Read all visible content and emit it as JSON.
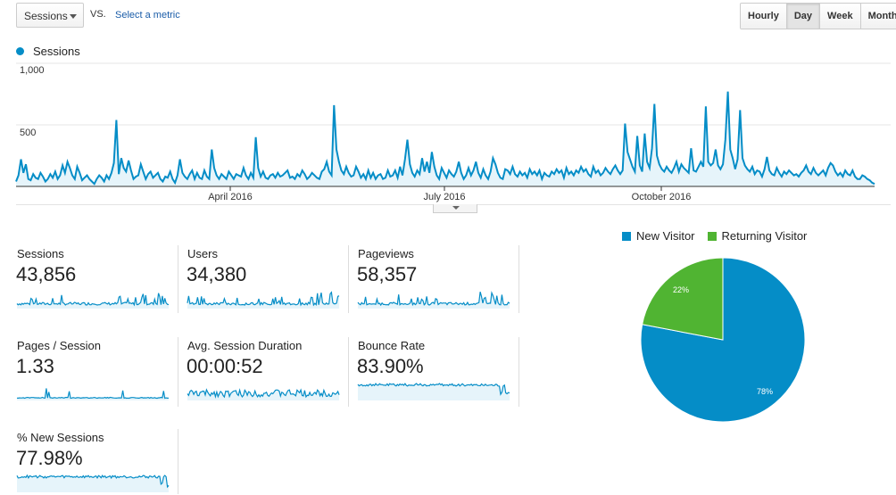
{
  "toolbar": {
    "metric_select": "Sessions",
    "vs": "VS.",
    "select_metric": "Select a metric",
    "granularity": [
      "Hourly",
      "Day",
      "Week",
      "Month"
    ],
    "active_granularity": "Day"
  },
  "main_chart": {
    "legend": "Sessions",
    "color": "#058dc7",
    "y_ticks": [
      "1,000",
      "500"
    ],
    "x_ticks": [
      "April 2016",
      "July 2016",
      "October 2016"
    ]
  },
  "metrics": [
    {
      "label": "Sessions",
      "value": "43,856"
    },
    {
      "label": "Users",
      "value": "34,380"
    },
    {
      "label": "Pageviews",
      "value": "58,357"
    },
    {
      "label": "Pages / Session",
      "value": "1.33"
    },
    {
      "label": "Avg. Session Duration",
      "value": "00:00:52"
    },
    {
      "label": "Bounce Rate",
      "value": "83.90%"
    },
    {
      "label": "% New Sessions",
      "value": "77.98%"
    }
  ],
  "pie": {
    "legend": [
      "New Visitor",
      "Returning Visitor"
    ],
    "colors": [
      "#058dc7",
      "#50b432"
    ],
    "new_label": "78%",
    "returning_label": "22%"
  },
  "chart_data": [
    {
      "type": "line",
      "series": [
        {
          "name": "Sessions",
          "values": [
            40,
            90,
            220,
            110,
            180,
            60,
            50,
            100,
            70,
            60,
            110,
            80,
            40,
            60,
            100,
            70,
            120,
            60,
            90,
            170,
            110,
            200,
            150,
            90,
            60,
            160,
            110,
            50,
            70,
            90,
            60,
            40,
            20,
            60,
            90,
            70,
            40,
            90,
            60,
            110,
            190,
            540,
            100,
            230,
            150,
            120,
            210,
            130,
            60,
            80,
            90,
            180,
            120,
            60,
            100,
            120,
            70,
            90,
            110,
            60,
            40,
            80,
            70,
            120,
            60,
            30,
            90,
            220,
            110,
            80,
            60,
            100,
            130,
            60,
            110,
            70,
            60,
            130,
            80,
            60,
            300,
            150,
            90,
            60,
            100,
            80,
            60,
            120,
            90,
            60,
            100,
            90,
            80,
            150,
            90,
            60,
            110,
            70,
            400,
            150,
            80,
            120,
            70,
            60,
            90,
            100,
            70,
            110,
            80,
            90,
            110,
            130,
            70,
            80,
            60,
            100,
            80,
            130,
            100,
            60,
            80,
            110,
            90,
            70,
            60,
            120,
            140,
            200,
            120,
            90,
            660,
            300,
            200,
            130,
            100,
            160,
            110,
            80,
            90,
            160,
            120,
            70,
            100,
            60,
            130,
            70,
            110,
            60,
            90,
            100,
            60,
            70,
            130,
            80,
            90,
            130,
            70,
            160,
            90,
            220,
            380,
            180,
            110,
            80,
            130,
            100,
            230,
            120,
            200,
            110,
            280,
            160,
            90,
            60,
            150,
            110,
            70,
            130,
            100,
            80,
            120,
            200,
            110,
            60,
            90,
            150,
            90,
            130,
            200,
            110,
            70,
            140,
            90,
            60,
            120,
            230,
            180,
            110,
            70,
            60,
            140,
            130,
            100,
            160,
            100,
            80,
            120,
            90,
            110,
            70,
            140,
            100,
            120,
            90,
            130,
            60,
            110,
            90,
            80,
            120,
            100,
            140,
            110,
            130,
            70,
            150,
            100,
            120,
            90,
            130,
            110,
            160,
            120,
            140,
            100,
            80,
            160,
            110,
            130,
            90,
            110,
            150,
            120,
            100,
            140,
            170,
            130,
            100,
            130,
            510,
            280,
            220,
            160,
            120,
            410,
            170,
            120,
            430,
            200,
            150,
            310,
            670,
            250,
            180,
            140,
            120,
            160,
            130,
            110,
            150,
            200,
            120,
            180,
            150,
            130,
            110,
            310,
            130,
            120,
            160,
            200,
            160,
            650,
            200,
            170,
            190,
            300,
            170,
            140,
            180,
            380,
            770,
            300,
            230,
            140,
            220,
            620,
            230,
            170,
            140,
            120,
            160,
            100,
            130,
            120,
            80,
            140,
            240,
            130,
            100,
            90,
            150,
            110,
            80,
            120,
            100,
            130,
            110,
            90,
            100,
            80,
            110,
            130,
            170,
            120,
            100,
            150,
            110,
            90,
            110,
            130,
            90,
            150,
            190,
            170,
            120,
            90,
            110,
            80,
            130,
            100,
            90,
            130,
            80,
            60,
            60,
            90,
            80,
            60,
            50,
            30,
            20
          ]
        }
      ],
      "ylim": [
        0,
        1000
      ]
    },
    {
      "type": "pie",
      "categories": [
        "New Visitor",
        "Returning Visitor"
      ],
      "values": [
        78,
        22
      ]
    }
  ]
}
